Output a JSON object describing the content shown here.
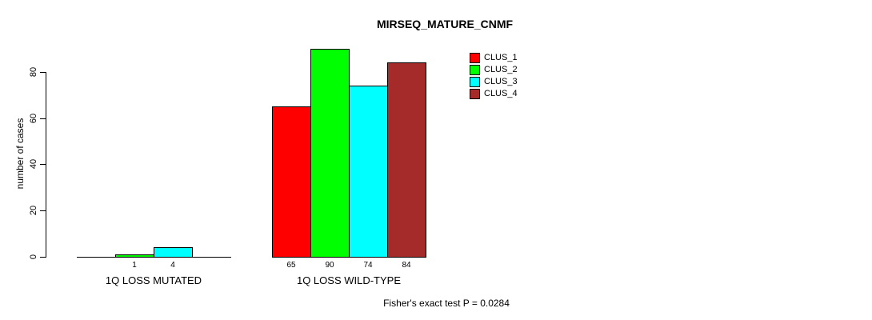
{
  "chart_data": {
    "type": "bar",
    "title": "MIRSEQ_MATURE_CNMF",
    "ylabel": "number of cases",
    "xlabel": "",
    "ylim": [
      0,
      90
    ],
    "yticks": [
      0,
      20,
      40,
      60,
      80
    ],
    "grid": false,
    "legend_position": "top-right",
    "categories": [
      "1Q LOSS MUTATED",
      "1Q LOSS WILD-TYPE"
    ],
    "series": [
      {
        "name": "CLUS_1",
        "color": "#FF0000",
        "values": [
          0,
          65
        ]
      },
      {
        "name": "CLUS_2",
        "color": "#00FF00",
        "values": [
          1,
          90
        ]
      },
      {
        "name": "CLUS_3",
        "color": "#00FFFF",
        "values": [
          4,
          74
        ]
      },
      {
        "name": "CLUS_4",
        "color": "#A52A2A",
        "values": [
          0,
          84
        ]
      }
    ],
    "show_zero_value_labels": false,
    "footnote": "Fisher's exact test P = 0.0284"
  },
  "colors": {
    "background": "#FFFFFF",
    "axis": "#000000",
    "text": "#000000"
  }
}
